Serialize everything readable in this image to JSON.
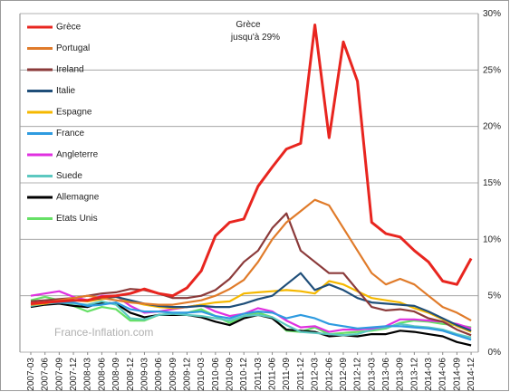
{
  "chart_data": {
    "type": "line",
    "annotation": [
      "Grèce",
      "jusqu'à 29%"
    ],
    "watermark": "France-Inflation.com",
    "categories": [
      "2007-03",
      "2007-06",
      "2007-09",
      "2007-12",
      "2008-03",
      "2008-06",
      "2008-09",
      "2008-12",
      "2009-03",
      "2009-06",
      "2009-09",
      "2009-12",
      "2010-03",
      "2010-06",
      "2010-09",
      "2010-12",
      "2011-03",
      "2011-06",
      "2011-09",
      "2011-12",
      "2012-03",
      "2012-06",
      "2012-09",
      "2012-12",
      "2013-03",
      "2013-06",
      "2013-09",
      "2013-12",
      "2014-03",
      "2014-06",
      "2014-09",
      "2014-12"
    ],
    "ylim": [
      0,
      30
    ],
    "yticks": [
      {
        "value": 0,
        "label": "0%"
      },
      {
        "value": 5,
        "label": "5%"
      },
      {
        "value": 10,
        "label": "10%"
      },
      {
        "value": 15,
        "label": "15%"
      },
      {
        "value": 20,
        "label": "20%"
      },
      {
        "value": 25,
        "label": "25%"
      },
      {
        "value": 30,
        "label": "30%"
      }
    ],
    "grid": true,
    "legend": "upper left",
    "series": [
      {
        "name": "Grèce",
        "color": "#e8251f",
        "values": [
          4.3,
          4.4,
          4.5,
          4.6,
          4.6,
          4.9,
          5.0,
          5.2,
          5.6,
          5.2,
          5.0,
          5.7,
          7.2,
          10.3,
          11.5,
          11.8,
          14.7,
          16.4,
          18,
          18.5,
          29.0,
          19,
          27.5,
          24,
          11.5,
          10.5,
          10.2,
          9,
          8,
          6.3,
          6,
          8.3
        ]
      },
      {
        "name": "Portugal",
        "color": "#e07b2a",
        "values": [
          4.2,
          4.4,
          4.6,
          4.8,
          5.0,
          4.8,
          4.6,
          4.4,
          4.3,
          4.2,
          4.2,
          4.4,
          4.6,
          5.0,
          5.6,
          6.4,
          8,
          10,
          11.5,
          12.5,
          13.5,
          13,
          11,
          9,
          7,
          6,
          6.5,
          6,
          5,
          4,
          3.5,
          2.8
        ]
      },
      {
        "name": "Ireland",
        "color": "#8b3a3a",
        "values": [
          4.5,
          4.6,
          4.7,
          4.8,
          5,
          5.2,
          5.3,
          5.6,
          5.5,
          5.2,
          4.8,
          4.8,
          5,
          5.5,
          6.5,
          8,
          9,
          11,
          12.3,
          9,
          8,
          7,
          7,
          5.5,
          4,
          3.7,
          3.8,
          3.6,
          3,
          2.7,
          2,
          1.5
        ]
      },
      {
        "name": "Italie",
        "color": "#1f4e79",
        "values": [
          4.3,
          4.4,
          4.6,
          4.6,
          4.6,
          4.8,
          4.9,
          4.6,
          4.3,
          4.1,
          4.0,
          4.0,
          4.1,
          4.0,
          4.0,
          4.3,
          4.7,
          5.0,
          6.0,
          7.0,
          5.5,
          6.0,
          5.5,
          4.8,
          4.4,
          4.3,
          4.2,
          4.1,
          3.6,
          3.0,
          2.4,
          1.9
        ]
      },
      {
        "name": "Espagne",
        "color": "#f5b800",
        "values": [
          4.2,
          4.3,
          4.6,
          4.6,
          4.5,
          4.7,
          4.9,
          4.5,
          4.2,
          4.0,
          3.9,
          4.0,
          4.2,
          4.4,
          4.5,
          5.2,
          5.3,
          5.4,
          5.5,
          5.4,
          5.2,
          6.3,
          6.0,
          5.4,
          4.8,
          4.6,
          4.4,
          3.9,
          3.5,
          2.9,
          2.3,
          1.8
        ]
      },
      {
        "name": "France",
        "color": "#2e9be0",
        "values": [
          4.2,
          4.4,
          4.4,
          4.4,
          4.1,
          4.2,
          4.4,
          3.8,
          3.6,
          3.6,
          3.5,
          3.5,
          3.6,
          3.2,
          3.0,
          3.4,
          3.6,
          3.5,
          3.0,
          3.3,
          3.0,
          2.5,
          2.3,
          2.1,
          2.2,
          2.3,
          2.3,
          2.2,
          2.1,
          1.9,
          1.5,
          1.1
        ]
      },
      {
        "name": "Angleterre",
        "color": "#e030e0",
        "values": [
          5.0,
          5.2,
          5.4,
          4.9,
          4.6,
          5.0,
          5.0,
          4.1,
          3.5,
          3.6,
          3.8,
          4.0,
          4.2,
          3.6,
          3.2,
          3.4,
          3.9,
          3.6,
          2.8,
          2.2,
          2.3,
          1.8,
          2.0,
          2.0,
          2.1,
          2.3,
          2.9,
          2.9,
          2.8,
          2.7,
          2.5,
          2.1
        ]
      },
      {
        "name": "Suede",
        "color": "#5cc8c0",
        "values": [
          4.1,
          4.3,
          4.4,
          4.3,
          4.2,
          4.5,
          4.2,
          3.0,
          2.9,
          3.3,
          3.4,
          3.3,
          3.2,
          3.0,
          2.8,
          3.2,
          3.3,
          3.1,
          2.4,
          1.8,
          1.7,
          1.6,
          1.5,
          1.6,
          2.0,
          2.2,
          2.5,
          2.3,
          2.2,
          2.0,
          1.6,
          1.3
        ]
      },
      {
        "name": "Allemagne",
        "color": "#000000",
        "values": [
          4.0,
          4.2,
          4.3,
          4.1,
          4.0,
          4.4,
          4.3,
          3.5,
          3.1,
          3.3,
          3.3,
          3.3,
          3.1,
          2.7,
          2.4,
          3.0,
          3.3,
          3.0,
          2.0,
          1.9,
          1.8,
          1.4,
          1.5,
          1.4,
          1.6,
          1.6,
          1.9,
          1.8,
          1.6,
          1.4,
          0.9,
          0.6
        ]
      },
      {
        "name": "Etats Unis",
        "color": "#66e066",
        "values": [
          4.6,
          4.9,
          4.6,
          4.1,
          3.6,
          4.0,
          3.8,
          2.8,
          2.8,
          3.3,
          3.4,
          3.5,
          3.8,
          3.2,
          2.6,
          3.2,
          3.5,
          3.1,
          1.9,
          1.8,
          2.2,
          1.6,
          1.7,
          1.8,
          1.9,
          2.1,
          2.6,
          2.8,
          2.7,
          2.5,
          2.4,
          2.2
        ]
      }
    ]
  }
}
